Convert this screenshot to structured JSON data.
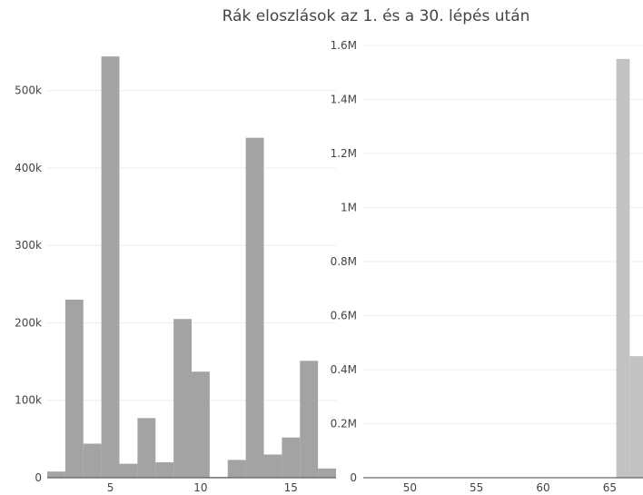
{
  "title": "Rák eloszlások az 1. és a 30. lépés után",
  "chart_data": [
    {
      "type": "bar",
      "bar_color": "#a3a3a3",
      "bins": [
        {
          "x": 2,
          "y": 8000
        },
        {
          "x": 3,
          "y": 230000
        },
        {
          "x": 4,
          "y": 44000
        },
        {
          "x": 5,
          "y": 544000
        },
        {
          "x": 6,
          "y": 18000
        },
        {
          "x": 7,
          "y": 77000
        },
        {
          "x": 8,
          "y": 20000
        },
        {
          "x": 9,
          "y": 205000
        },
        {
          "x": 10,
          "y": 137000
        },
        {
          "x": 11,
          "y": 1000
        },
        {
          "x": 12,
          "y": 23000
        },
        {
          "x": 13,
          "y": 439000
        },
        {
          "x": 14,
          "y": 30000
        },
        {
          "x": 15,
          "y": 52000
        },
        {
          "x": 16,
          "y": 151000
        },
        {
          "x": 17,
          "y": 12000
        }
      ],
      "xlim": [
        1.5,
        17.5
      ],
      "ylim": [
        0,
        570000
      ],
      "xticks": [
        {
          "v": 5,
          "label": "5"
        },
        {
          "v": 10,
          "label": "10"
        },
        {
          "v": 15,
          "label": "15"
        }
      ],
      "yticks": [
        {
          "v": 0,
          "label": "0"
        },
        {
          "v": 100000,
          "label": "100k"
        },
        {
          "v": 200000,
          "label": "200k"
        },
        {
          "v": 300000,
          "label": "300k"
        },
        {
          "v": 400000,
          "label": "400k"
        },
        {
          "v": 500000,
          "label": "500k"
        }
      ],
      "grid": true
    },
    {
      "type": "bar",
      "bar_color": "#c2c2c2",
      "bins": [
        {
          "x": 66,
          "y": 1550000
        },
        {
          "x": 67,
          "y": 450000
        }
      ],
      "xlim": [
        46.5,
        67.5
      ],
      "ylim": [
        0,
        1600000
      ],
      "xticks": [
        {
          "v": 50,
          "label": "50"
        },
        {
          "v": 55,
          "label": "55"
        },
        {
          "v": 60,
          "label": "60"
        },
        {
          "v": 65,
          "label": "65"
        }
      ],
      "yticks": [
        {
          "v": 0,
          "label": "0"
        },
        {
          "v": 200000,
          "label": "0.2M"
        },
        {
          "v": 400000,
          "label": "0.4M"
        },
        {
          "v": 600000,
          "label": "0.6M"
        },
        {
          "v": 800000,
          "label": "0.8M"
        },
        {
          "v": 1000000,
          "label": "1M"
        },
        {
          "v": 1200000,
          "label": "1.2M"
        },
        {
          "v": 1400000,
          "label": "1.4M"
        },
        {
          "v": 1600000,
          "label": "1.6M"
        }
      ],
      "grid": true
    }
  ]
}
